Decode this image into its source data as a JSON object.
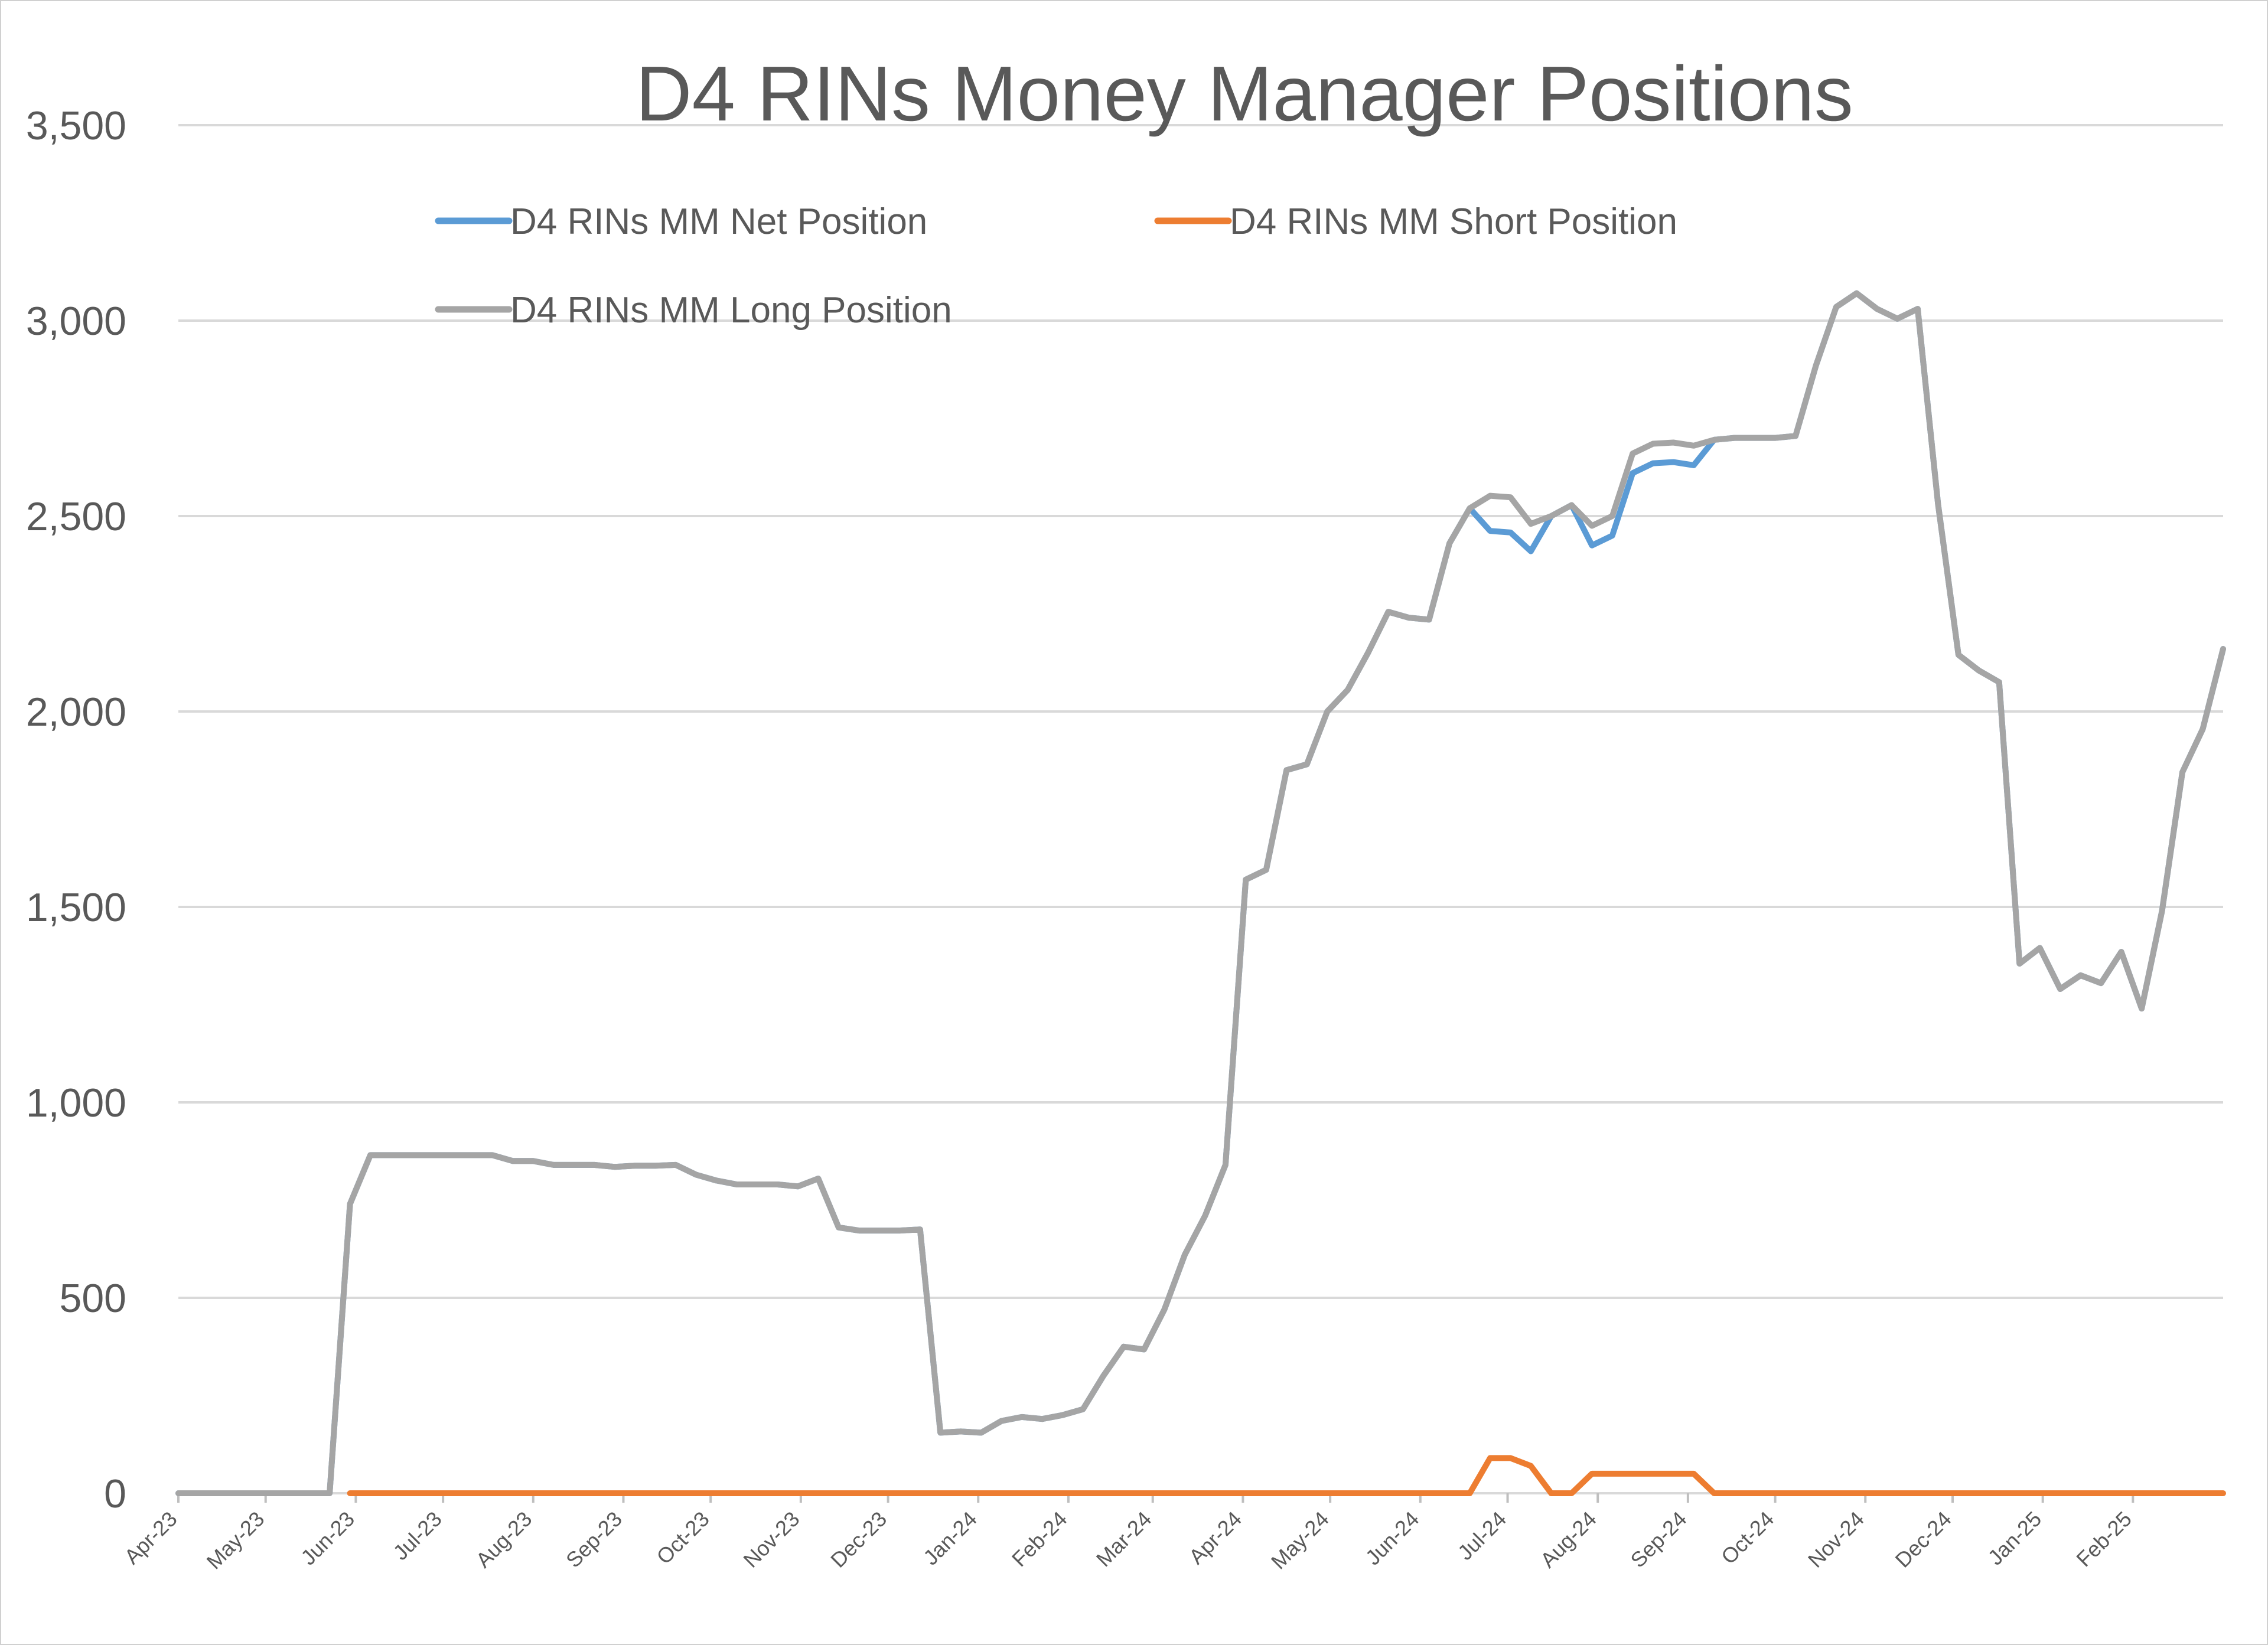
{
  "chart_data": {
    "type": "line",
    "title": "D4 RINs Money Manager Positions",
    "xlabel": "",
    "ylabel": "",
    "ylim": [
      0,
      3500
    ],
    "yticks": [
      "0",
      "500",
      "1,000",
      "1,500",
      "2,000",
      "2,500",
      "3,000",
      "3,500"
    ],
    "x_ticks": [
      "Apr-23",
      "May-23",
      "Jun-23",
      "Jul-23",
      "Aug-23",
      "Sep-23",
      "Oct-23",
      "Nov-23",
      "Dec-23",
      "Jan-24",
      "Feb-24",
      "Mar-24",
      "Apr-24",
      "May-24",
      "Jun-24",
      "Jul-24",
      "Aug-24",
      "Sep-24",
      "Oct-24",
      "Nov-24",
      "Dec-24",
      "Jan-25",
      "Feb-25"
    ],
    "grid": true,
    "legend_position": "top",
    "colors": {
      "net": "#5b9bd5",
      "short": "#ed7d31",
      "long": "#a5a5a5",
      "grid": "#d9d9d9",
      "text": "#595959"
    },
    "series": [
      {
        "name": "D4 RINs MM Net Position",
        "key": "net",
        "points": [
          [
            "2023-04-01",
            0
          ],
          [
            "2023-05-23",
            0
          ],
          [
            "2023-05-30",
            740
          ],
          [
            "2023-06-06",
            865
          ],
          [
            "2023-06-13",
            865
          ],
          [
            "2023-06-20",
            865
          ],
          [
            "2023-06-27",
            865
          ],
          [
            "2023-07-04",
            865
          ],
          [
            "2023-07-11",
            865
          ],
          [
            "2023-07-18",
            865
          ],
          [
            "2023-07-25",
            850
          ],
          [
            "2023-08-01",
            850
          ],
          [
            "2023-08-08",
            840
          ],
          [
            "2023-08-15",
            840
          ],
          [
            "2023-08-22",
            840
          ],
          [
            "2023-08-29",
            835
          ],
          [
            "2023-09-05",
            838
          ],
          [
            "2023-09-12",
            838
          ],
          [
            "2023-09-19",
            840
          ],
          [
            "2023-09-26",
            815
          ],
          [
            "2023-10-03",
            800
          ],
          [
            "2023-10-10",
            790
          ],
          [
            "2023-10-17",
            790
          ],
          [
            "2023-10-24",
            790
          ],
          [
            "2023-10-31",
            785
          ],
          [
            "2023-11-07",
            805
          ],
          [
            "2023-11-14",
            680
          ],
          [
            "2023-11-21",
            672
          ],
          [
            "2023-11-28",
            672
          ],
          [
            "2023-12-05",
            672
          ],
          [
            "2023-12-12",
            675
          ],
          [
            "2023-12-19",
            155
          ],
          [
            "2023-12-26",
            158
          ],
          [
            "2024-01-02",
            155
          ],
          [
            "2024-01-09",
            185
          ],
          [
            "2024-01-16",
            195
          ],
          [
            "2024-01-23",
            190
          ],
          [
            "2024-01-30",
            200
          ],
          [
            "2024-02-06",
            215
          ],
          [
            "2024-02-13",
            300
          ],
          [
            "2024-02-20",
            375
          ],
          [
            "2024-02-27",
            368
          ],
          [
            "2024-03-05",
            470
          ],
          [
            "2024-03-12",
            610
          ],
          [
            "2024-03-19",
            710
          ],
          [
            "2024-03-26",
            840
          ],
          [
            "2024-04-02",
            1570
          ],
          [
            "2024-04-09",
            1595
          ],
          [
            "2024-04-16",
            1850
          ],
          [
            "2024-04-23",
            1865
          ],
          [
            "2024-04-30",
            2000
          ],
          [
            "2024-05-07",
            2055
          ],
          [
            "2024-05-14",
            2150
          ],
          [
            "2024-05-21",
            2255
          ],
          [
            "2024-05-28",
            2240
          ],
          [
            "2024-06-04",
            2235
          ],
          [
            "2024-06-11",
            2430
          ],
          [
            "2024-06-18",
            2520
          ],
          [
            "2024-06-25",
            2462
          ],
          [
            "2024-07-02",
            2458
          ],
          [
            "2024-07-09",
            2410
          ],
          [
            "2024-07-16",
            2500
          ],
          [
            "2024-07-23",
            2528
          ],
          [
            "2024-07-30",
            2425
          ],
          [
            "2024-08-06",
            2450
          ],
          [
            "2024-08-13",
            2610
          ],
          [
            "2024-08-20",
            2635
          ],
          [
            "2024-08-27",
            2638
          ],
          [
            "2024-09-03",
            2630
          ],
          [
            "2024-09-10",
            2695
          ],
          [
            "2024-09-17",
            2700
          ],
          [
            "2024-09-24",
            2700
          ],
          [
            "2024-10-01",
            2700
          ],
          [
            "2024-10-08",
            2705
          ],
          [
            "2024-10-15",
            2885
          ],
          [
            "2024-10-22",
            3035
          ],
          [
            "2024-10-29",
            3070
          ],
          [
            "2024-11-05",
            3030
          ],
          [
            "2024-11-12",
            3005
          ],
          [
            "2024-11-19",
            3030
          ],
          [
            "2024-11-26",
            2530
          ],
          [
            "2024-12-03",
            2145
          ],
          [
            "2024-12-10",
            2105
          ],
          [
            "2024-12-17",
            2075
          ],
          [
            "2024-12-24",
            1355
          ],
          [
            "2024-12-31",
            1395
          ],
          [
            "2025-01-07",
            1290
          ],
          [
            "2025-01-14",
            1325
          ],
          [
            "2025-01-21",
            1305
          ],
          [
            "2025-01-28",
            1385
          ],
          [
            "2025-02-04",
            1240
          ],
          [
            "2025-02-11",
            1490
          ],
          [
            "2025-02-18",
            1845
          ],
          [
            "2025-02-25",
            1955
          ],
          [
            "2025-03-04",
            2160
          ]
        ]
      },
      {
        "name": "D4 RINs MM Short Position",
        "key": "short",
        "points": [
          [
            "2023-05-30",
            0
          ],
          [
            "2024-06-18",
            0
          ],
          [
            "2024-06-25",
            90
          ],
          [
            "2024-07-02",
            90
          ],
          [
            "2024-07-09",
            70
          ],
          [
            "2024-07-16",
            0
          ],
          [
            "2024-07-23",
            0
          ],
          [
            "2024-07-30",
            50
          ],
          [
            "2024-08-06",
            50
          ],
          [
            "2024-08-13",
            50
          ],
          [
            "2024-08-20",
            50
          ],
          [
            "2024-08-27",
            50
          ],
          [
            "2024-09-03",
            50
          ],
          [
            "2024-09-10",
            0
          ],
          [
            "2025-03-04",
            0
          ]
        ]
      },
      {
        "name": "D4 RINs MM Long Position",
        "key": "long",
        "points": [
          [
            "2023-04-01",
            0
          ],
          [
            "2023-05-23",
            0
          ],
          [
            "2023-05-30",
            740
          ],
          [
            "2023-06-06",
            865
          ],
          [
            "2023-06-13",
            865
          ],
          [
            "2023-06-20",
            865
          ],
          [
            "2023-06-27",
            865
          ],
          [
            "2023-07-04",
            865
          ],
          [
            "2023-07-11",
            865
          ],
          [
            "2023-07-18",
            865
          ],
          [
            "2023-07-25",
            850
          ],
          [
            "2023-08-01",
            850
          ],
          [
            "2023-08-08",
            840
          ],
          [
            "2023-08-15",
            840
          ],
          [
            "2023-08-22",
            840
          ],
          [
            "2023-08-29",
            835
          ],
          [
            "2023-09-05",
            838
          ],
          [
            "2023-09-12",
            838
          ],
          [
            "2023-09-19",
            840
          ],
          [
            "2023-09-26",
            815
          ],
          [
            "2023-10-03",
            800
          ],
          [
            "2023-10-10",
            790
          ],
          [
            "2023-10-17",
            790
          ],
          [
            "2023-10-24",
            790
          ],
          [
            "2023-10-31",
            785
          ],
          [
            "2023-11-07",
            805
          ],
          [
            "2023-11-14",
            680
          ],
          [
            "2023-11-21",
            672
          ],
          [
            "2023-11-28",
            672
          ],
          [
            "2023-12-05",
            672
          ],
          [
            "2023-12-12",
            675
          ],
          [
            "2023-12-19",
            155
          ],
          [
            "2023-12-26",
            158
          ],
          [
            "2024-01-02",
            155
          ],
          [
            "2024-01-09",
            185
          ],
          [
            "2024-01-16",
            195
          ],
          [
            "2024-01-23",
            190
          ],
          [
            "2024-01-30",
            200
          ],
          [
            "2024-02-06",
            215
          ],
          [
            "2024-02-13",
            300
          ],
          [
            "2024-02-20",
            375
          ],
          [
            "2024-02-27",
            368
          ],
          [
            "2024-03-05",
            470
          ],
          [
            "2024-03-12",
            610
          ],
          [
            "2024-03-19",
            710
          ],
          [
            "2024-03-26",
            840
          ],
          [
            "2024-04-02",
            1570
          ],
          [
            "2024-04-09",
            1595
          ],
          [
            "2024-04-16",
            1850
          ],
          [
            "2024-04-23",
            1865
          ],
          [
            "2024-04-30",
            2000
          ],
          [
            "2024-05-07",
            2055
          ],
          [
            "2024-05-14",
            2150
          ],
          [
            "2024-05-21",
            2255
          ],
          [
            "2024-05-28",
            2240
          ],
          [
            "2024-06-04",
            2235
          ],
          [
            "2024-06-11",
            2430
          ],
          [
            "2024-06-18",
            2520
          ],
          [
            "2024-06-25",
            2552
          ],
          [
            "2024-07-02",
            2548
          ],
          [
            "2024-07-09",
            2480
          ],
          [
            "2024-07-16",
            2500
          ],
          [
            "2024-07-23",
            2528
          ],
          [
            "2024-07-30",
            2475
          ],
          [
            "2024-08-06",
            2500
          ],
          [
            "2024-08-13",
            2660
          ],
          [
            "2024-08-20",
            2685
          ],
          [
            "2024-08-27",
            2688
          ],
          [
            "2024-09-03",
            2680
          ],
          [
            "2024-09-10",
            2695
          ],
          [
            "2024-09-17",
            2700
          ],
          [
            "2024-09-24",
            2700
          ],
          [
            "2024-10-01",
            2700
          ],
          [
            "2024-10-08",
            2705
          ],
          [
            "2024-10-15",
            2885
          ],
          [
            "2024-10-22",
            3035
          ],
          [
            "2024-10-29",
            3070
          ],
          [
            "2024-11-05",
            3030
          ],
          [
            "2024-11-12",
            3005
          ],
          [
            "2024-11-19",
            3030
          ],
          [
            "2024-11-26",
            2530
          ],
          [
            "2024-12-03",
            2145
          ],
          [
            "2024-12-10",
            2105
          ],
          [
            "2024-12-17",
            2075
          ],
          [
            "2024-12-24",
            1355
          ],
          [
            "2024-12-31",
            1395
          ],
          [
            "2025-01-07",
            1290
          ],
          [
            "2025-01-14",
            1325
          ],
          [
            "2025-01-21",
            1305
          ],
          [
            "2025-01-28",
            1385
          ],
          [
            "2025-02-04",
            1240
          ],
          [
            "2025-02-11",
            1490
          ],
          [
            "2025-02-18",
            1845
          ],
          [
            "2025-02-25",
            1955
          ],
          [
            "2025-03-04",
            2160
          ]
        ]
      }
    ]
  }
}
